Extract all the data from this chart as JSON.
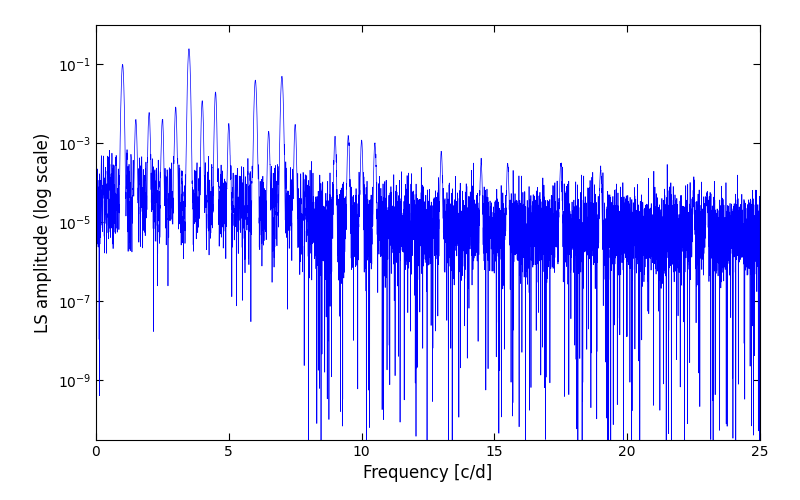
{
  "line_color": "#0000ff",
  "xlabel": "Frequency [c/d]",
  "ylabel": "LS amplitude (log scale)",
  "xmin": 0,
  "xmax": 25,
  "ymin": 3e-11,
  "ymax": 1.0,
  "yticks": [
    1e-09,
    1e-07,
    1e-05,
    0.001,
    0.1
  ],
  "xticks": [
    0,
    5,
    10,
    15,
    20,
    25
  ],
  "figsize": [
    8.0,
    5.0
  ],
  "dpi": 100,
  "linewidth": 0.5,
  "background_color": "#ffffff",
  "seed": 137,
  "n_points": 8000
}
